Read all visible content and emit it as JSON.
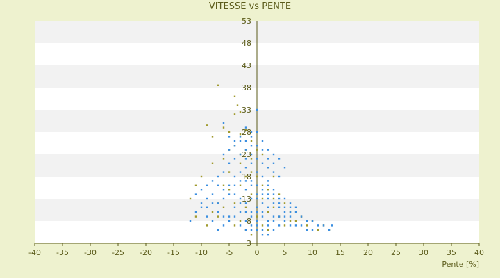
{
  "chart_data": {
    "type": "scatter",
    "title": "VITESSE vs PENTE",
    "xlabel": "Pente [%]",
    "ylabel": "",
    "xlim": [
      -40,
      40
    ],
    "ylim": [
      3,
      53
    ],
    "xticks": [
      "-40",
      "-35",
      "-30",
      "-25",
      "-20",
      "-15",
      "-10",
      "-5",
      "0",
      "5",
      "10",
      "15",
      "20",
      "25",
      "30",
      "35",
      "40"
    ],
    "yticks": [
      "3",
      "8",
      "13",
      "18",
      "23",
      "28",
      "33",
      "38",
      "43",
      "48",
      "53"
    ],
    "grid": "horizontal bands",
    "legend": "none",
    "colors": {
      "background": "#eef2cf",
      "band_light": "#ffffff",
      "band_dark": "#f2f2f2",
      "axis": "#5b5b1a",
      "series_blue": "#3a8ee0",
      "series_olive": "#a09a2e"
    },
    "series": [
      {
        "color": "#a09a2e",
        "points": [
          [
            -7,
            38.5
          ],
          [
            -4,
            36
          ],
          [
            -3.5,
            34
          ],
          [
            -4,
            32
          ],
          [
            -3,
            32.5
          ],
          [
            -6,
            29
          ],
          [
            -9,
            29.5
          ],
          [
            -8,
            27
          ],
          [
            -5,
            28
          ],
          [
            -3,
            27.5
          ],
          [
            -2,
            28.5
          ],
          [
            -1,
            26
          ],
          [
            -4,
            25
          ],
          [
            -2,
            24
          ],
          [
            -6,
            22
          ],
          [
            -8,
            21
          ],
          [
            -10,
            18
          ],
          [
            -11,
            16
          ],
          [
            -12,
            13
          ],
          [
            -11,
            9
          ],
          [
            -9,
            7
          ],
          [
            -8,
            10
          ],
          [
            -7,
            12
          ],
          [
            -6,
            16
          ],
          [
            -5,
            19
          ],
          [
            -3,
            21
          ],
          [
            -1,
            22
          ],
          [
            0,
            24
          ],
          [
            1,
            23
          ],
          [
            2,
            20
          ],
          [
            3,
            18
          ],
          [
            4,
            14
          ],
          [
            5,
            12
          ],
          [
            6,
            10
          ],
          [
            7,
            8
          ],
          [
            8,
            9
          ],
          [
            9,
            7
          ],
          [
            10,
            8
          ],
          [
            11,
            6
          ],
          [
            12,
            7
          ],
          [
            13,
            6
          ],
          [
            -1,
            14
          ],
          [
            -2,
            11
          ],
          [
            0,
            9
          ],
          [
            1,
            7
          ],
          [
            2,
            6
          ],
          [
            -3,
            8
          ],
          [
            -4,
            12
          ],
          [
            -5,
            15
          ],
          [
            -2,
            18
          ],
          [
            1,
            16
          ],
          [
            3,
            11
          ],
          [
            4,
            9
          ],
          [
            5,
            7
          ],
          [
            6,
            8
          ],
          [
            -6,
            11
          ],
          [
            -7,
            9
          ],
          [
            -1,
            5
          ],
          [
            0,
            6
          ],
          [
            2,
            10
          ],
          [
            3,
            13
          ],
          [
            -2,
            6
          ],
          [
            -4,
            7
          ],
          [
            -3,
            16
          ],
          [
            -1,
            19
          ],
          [
            1,
            13
          ],
          [
            2,
            15
          ],
          [
            0,
            18
          ],
          [
            -5,
            24
          ],
          [
            -3,
            23
          ]
        ]
      },
      {
        "color": "#3a8ee0",
        "points": [
          [
            -6,
            30
          ],
          [
            -5,
            27
          ],
          [
            -4,
            26
          ],
          [
            -3,
            27
          ],
          [
            -2,
            29
          ],
          [
            -1,
            28
          ],
          [
            0,
            33
          ],
          [
            -1,
            25
          ],
          [
            -2,
            24
          ],
          [
            -3,
            23
          ],
          [
            -4,
            22
          ],
          [
            -5,
            21
          ],
          [
            -6,
            19
          ],
          [
            -7,
            18
          ],
          [
            -8,
            17
          ],
          [
            -9,
            16
          ],
          [
            -10,
            15
          ],
          [
            -11,
            14
          ],
          [
            -10,
            11
          ],
          [
            -9,
            9
          ],
          [
            -8,
            8
          ],
          [
            -7,
            6
          ],
          [
            -6,
            7
          ],
          [
            -5,
            9
          ],
          [
            -4,
            11
          ],
          [
            -3,
            13
          ],
          [
            -2,
            15
          ],
          [
            -1,
            17
          ],
          [
            0,
            19
          ],
          [
            1,
            21
          ],
          [
            2,
            20
          ],
          [
            3,
            19
          ],
          [
            4,
            18
          ],
          [
            2,
            17
          ],
          [
            1,
            15
          ],
          [
            0,
            14
          ],
          [
            -1,
            13
          ],
          [
            -2,
            12
          ],
          [
            -3,
            10
          ],
          [
            -2,
            8
          ],
          [
            -1,
            7
          ],
          [
            0,
            6
          ],
          [
            1,
            5
          ],
          [
            2,
            5
          ],
          [
            3,
            6
          ],
          [
            4,
            7
          ],
          [
            5,
            8
          ],
          [
            6,
            9
          ],
          [
            7,
            10
          ],
          [
            8,
            9
          ],
          [
            9,
            8
          ],
          [
            10,
            8
          ],
          [
            11,
            7
          ],
          [
            12,
            7
          ],
          [
            13,
            6
          ],
          [
            13.5,
            7
          ],
          [
            -1,
            10
          ],
          [
            0,
            11
          ],
          [
            1,
            12
          ],
          [
            2,
            13
          ],
          [
            3,
            14
          ],
          [
            4,
            12
          ],
          [
            5,
            11
          ],
          [
            6,
            10
          ],
          [
            3,
            9
          ],
          [
            2,
            8
          ],
          [
            1,
            9
          ],
          [
            0,
            8
          ],
          [
            -1,
            9
          ],
          [
            -2,
            10
          ],
          [
            -3,
            12
          ],
          [
            -4,
            14
          ],
          [
            -5,
            16
          ],
          [
            -4,
            18
          ],
          [
            -3,
            19
          ],
          [
            -2,
            20
          ],
          [
            -1,
            21
          ],
          [
            0,
            22
          ],
          [
            1,
            18
          ],
          [
            2,
            16
          ],
          [
            3,
            15
          ],
          [
            4,
            13
          ],
          [
            5,
            13
          ],
          [
            6,
            12
          ],
          [
            7,
            11
          ],
          [
            -6,
            13
          ],
          [
            -7,
            12
          ],
          [
            -8,
            14
          ],
          [
            -9,
            13
          ],
          [
            -10,
            12
          ],
          [
            -11,
            10
          ],
          [
            -12,
            8
          ],
          [
            -6,
            23
          ],
          [
            -5,
            24
          ],
          [
            -4,
            25
          ],
          [
            -3,
            26
          ],
          [
            -2,
            26
          ],
          [
            -1,
            27
          ],
          [
            0,
            28
          ],
          [
            1,
            26
          ],
          [
            2,
            24
          ],
          [
            3,
            23
          ],
          [
            4,
            22
          ],
          [
            5,
            20
          ],
          [
            0,
            16
          ],
          [
            0,
            13
          ],
          [
            0,
            10
          ],
          [
            0,
            7
          ],
          [
            1,
            6
          ],
          [
            2,
            7
          ],
          [
            3,
            8
          ],
          [
            4,
            9
          ],
          [
            5,
            10
          ],
          [
            6,
            11
          ],
          [
            1,
            10
          ],
          [
            2,
            11
          ],
          [
            1,
            14
          ],
          [
            2,
            14
          ],
          [
            -1,
            16
          ],
          [
            -2,
            17
          ],
          [
            -3,
            17
          ],
          [
            -4,
            16
          ],
          [
            -5,
            14
          ],
          [
            -6,
            15
          ],
          [
            -7,
            16
          ],
          [
            -8,
            12
          ],
          [
            -9,
            11
          ],
          [
            -7,
            10
          ],
          [
            -6,
            9
          ],
          [
            -5,
            8
          ],
          [
            -4,
            9
          ],
          [
            -3,
            7
          ],
          [
            -2,
            6
          ],
          [
            -1,
            6
          ],
          [
            3,
            12
          ],
          [
            4,
            11
          ],
          [
            5,
            9
          ],
          [
            6,
            7
          ],
          [
            7,
            7
          ],
          [
            8,
            7
          ],
          [
            9,
            6
          ],
          [
            10,
            6
          ],
          [
            -2,
            22
          ],
          [
            -1,
            23
          ],
          [
            0,
            25
          ],
          [
            1,
            24
          ],
          [
            2,
            22
          ],
          [
            3,
            21
          ]
        ]
      }
    ]
  }
}
